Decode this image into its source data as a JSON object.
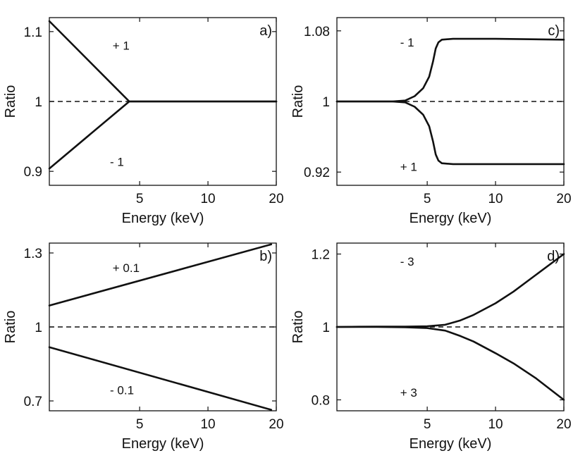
{
  "chart_data": [
    {
      "type": "line",
      "panel_label": "a)",
      "xlabel": "Energy (keV)",
      "ylabel": "Ratio",
      "x_scale": "log",
      "xlim": [
        2,
        20
      ],
      "ylim": [
        0.88,
        1.12
      ],
      "xticks": [
        5,
        10,
        20
      ],
      "yticks": [
        {
          "v": 0.9,
          "t": "0.9"
        },
        {
          "v": 1,
          "t": "1"
        },
        {
          "v": 1.1,
          "t": "1.1"
        }
      ],
      "reference_line": 1,
      "series": [
        {
          "label": "+ 1",
          "x": [
            2,
            4.5,
            20
          ],
          "y": [
            1.115,
            1.0,
            1.0
          ]
        },
        {
          "label": "- 1",
          "x": [
            2,
            4.5,
            20
          ],
          "y": [
            0.904,
            1.0,
            1.0
          ]
        }
      ],
      "annotations": [
        {
          "text": "+ 1",
          "x": 3.8,
          "y": 1.08
        },
        {
          "text": "- 1",
          "x": 3.7,
          "y": 0.914
        }
      ]
    },
    {
      "type": "line",
      "panel_label": "b)",
      "xlabel": "Energy (keV)",
      "ylabel": "Ratio",
      "x_scale": "log",
      "xlim": [
        2,
        20
      ],
      "ylim": [
        0.66,
        1.34
      ],
      "xticks": [
        5,
        10,
        20
      ],
      "yticks": [
        {
          "v": 0.7,
          "t": "0.7"
        },
        {
          "v": 1,
          "t": "1"
        },
        {
          "v": 1.3,
          "t": "1.3"
        }
      ],
      "reference_line": 1,
      "series": [
        {
          "label": "+ 0.1",
          "x": [
            2,
            19
          ],
          "y": [
            1.087,
            1.335
          ]
        },
        {
          "label": "- 0.1",
          "x": [
            2,
            19
          ],
          "y": [
            0.918,
            0.664
          ]
        }
      ],
      "annotations": [
        {
          "text": "+ 0.1",
          "x": 3.8,
          "y": 1.24
        },
        {
          "text": "- 0.1",
          "x": 3.7,
          "y": 0.745
        }
      ]
    },
    {
      "type": "line",
      "panel_label": "c)",
      "xlabel": "Energy (keV)",
      "ylabel": "Ratio",
      "x_scale": "log",
      "xlim": [
        2,
        20
      ],
      "ylim": [
        0.905,
        1.095
      ],
      "xticks": [
        5,
        10,
        20
      ],
      "yticks": [
        {
          "v": 0.92,
          "t": "0.92"
        },
        {
          "v": 1,
          "t": "1"
        },
        {
          "v": 1.08,
          "t": "1.08"
        }
      ],
      "reference_line": 1,
      "series": [
        {
          "label": "- 1",
          "x": [
            2,
            3.5,
            4,
            4.4,
            4.8,
            5.1,
            5.3,
            5.45,
            5.6,
            5.8,
            6.5,
            10,
            20
          ],
          "y": [
            1.0,
            1.0,
            1.001,
            1.006,
            1.015,
            1.028,
            1.045,
            1.06,
            1.067,
            1.07,
            1.071,
            1.071,
            1.07
          ]
        },
        {
          "label": "+ 1",
          "x": [
            2,
            3.5,
            4,
            4.4,
            4.8,
            5.1,
            5.3,
            5.45,
            5.6,
            5.8,
            6.5,
            10,
            20
          ],
          "y": [
            1.0,
            1.0,
            0.999,
            0.994,
            0.985,
            0.972,
            0.955,
            0.94,
            0.933,
            0.93,
            0.929,
            0.929,
            0.929
          ]
        }
      ],
      "annotations": [
        {
          "text": "- 1",
          "x": 3.8,
          "y": 1.067
        },
        {
          "text": "+ 1",
          "x": 3.8,
          "y": 0.926
        }
      ]
    },
    {
      "type": "line",
      "panel_label": "d)",
      "xlabel": "Energy (keV)",
      "ylabel": "Ratio",
      "x_scale": "log",
      "xlim": [
        2,
        20
      ],
      "ylim": [
        0.77,
        1.23
      ],
      "xticks": [
        5,
        10,
        20
      ],
      "yticks": [
        {
          "v": 0.8,
          "t": "0.8"
        },
        {
          "v": 1,
          "t": "1"
        },
        {
          "v": 1.2,
          "t": "1.2"
        }
      ],
      "reference_line": 1,
      "series": [
        {
          "label": "- 3",
          "x": [
            2,
            3,
            4,
            5,
            6,
            7,
            8,
            10,
            12,
            15,
            20
          ],
          "y": [
            1.0,
            1.001,
            1.001,
            1.002,
            1.006,
            1.018,
            1.033,
            1.065,
            1.097,
            1.142,
            1.2
          ]
        },
        {
          "label": "+ 3",
          "x": [
            2,
            3,
            4,
            5,
            6,
            7,
            8,
            10,
            12,
            15,
            20
          ],
          "y": [
            1.0,
            1.0,
            0.999,
            0.997,
            0.99,
            0.975,
            0.96,
            0.928,
            0.9,
            0.86,
            0.8
          ]
        }
      ],
      "annotations": [
        {
          "text": "- 3",
          "x": 3.8,
          "y": 1.18
        },
        {
          "text": "+ 3",
          "x": 3.8,
          "y": 0.82
        }
      ]
    }
  ]
}
